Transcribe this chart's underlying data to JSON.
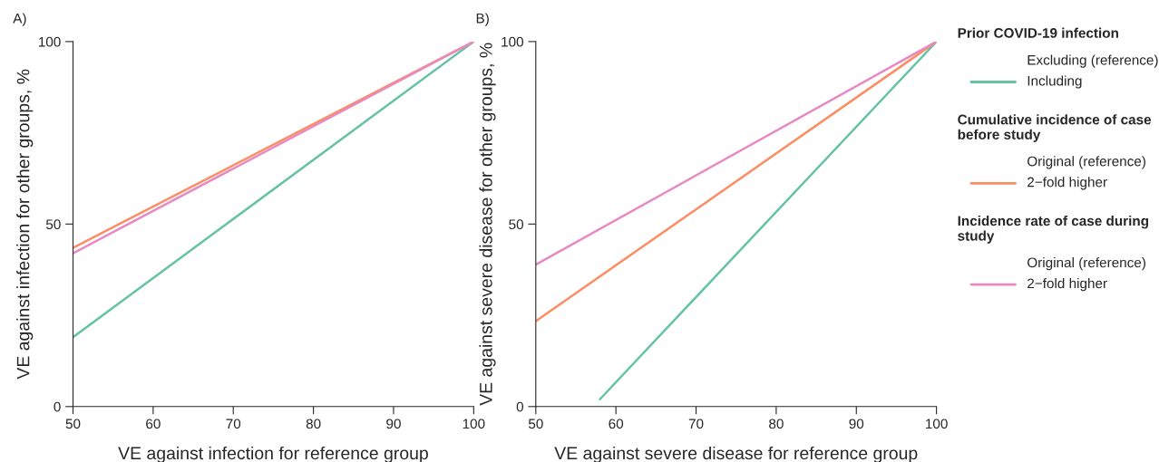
{
  "chart_data": [
    {
      "type": "line",
      "title": "A)",
      "xlabel": "VE against infection for reference group",
      "ylabel": "VE against infection for other groups, %",
      "xlim": [
        50,
        100
      ],
      "xticks": [
        50,
        60,
        70,
        80,
        90,
        100
      ],
      "ylim": [
        0,
        100
      ],
      "yticks": [
        0,
        50,
        100
      ],
      "grid": false,
      "series": [
        {
          "color": "#66c2a5",
          "x": [
            50,
            100
          ],
          "values": [
            19,
            100
          ]
        },
        {
          "color": "#fc8d62",
          "x": [
            50,
            100
          ],
          "values": [
            43.5,
            100
          ]
        },
        {
          "color": "#e78ac3",
          "x": [
            50,
            100
          ],
          "values": [
            42,
            100
          ]
        }
      ]
    },
    {
      "type": "line",
      "title": "B)",
      "xlabel": "VE against severe disease for reference group",
      "ylabel": "VE against severe disease for other groups, %",
      "xlim": [
        50,
        100
      ],
      "xticks": [
        50,
        60,
        70,
        80,
        90,
        100
      ],
      "ylim": [
        0,
        100
      ],
      "yticks": [
        0,
        50,
        100
      ],
      "grid": false,
      "legend": "right",
      "annotations": [
        "Prior COVID-19 infection",
        "Cumulative incidence of case before study",
        "Incidence rate of case during study"
      ],
      "series": [
        {
          "name": "Excluding (reference)",
          "color": null
        },
        {
          "name": "Including",
          "color": "#66c2a5",
          "x": [
            58,
            100
          ],
          "values": [
            2,
            100
          ]
        },
        {
          "name": "Original (reference)",
          "color": null
        },
        {
          "name": "2−fold higher",
          "color": "#fc8d62",
          "x": [
            50,
            100
          ],
          "values": [
            23.4,
            100
          ]
        },
        {
          "name": "Original (reference)",
          "color": null
        },
        {
          "name": "2−fold higher",
          "color": "#e78ac3",
          "x": [
            50,
            100
          ],
          "values": [
            38.9,
            100
          ]
        }
      ]
    }
  ]
}
